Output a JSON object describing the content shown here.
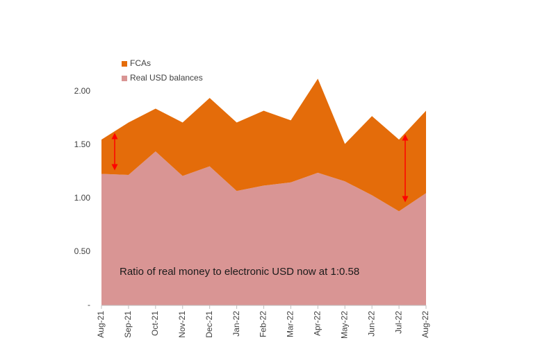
{
  "chart_data": {
    "type": "stacked_area",
    "categories": [
      "Aug-21",
      "Sep-21",
      "Oct-21",
      "Nov-21",
      "Dec-21",
      "Jan-22",
      "Feb-22",
      "Mar-22",
      "Apr-22",
      "May-22",
      "Jun-22",
      "Jul-22",
      "Aug-22"
    ],
    "series": [
      {
        "name": "Real USD balances",
        "color": "#d99594",
        "values": [
          1.23,
          1.22,
          1.44,
          1.21,
          1.3,
          1.07,
          1.12,
          1.15,
          1.24,
          1.16,
          1.03,
          0.88,
          1.05
        ]
      },
      {
        "name": "FCAs",
        "color": "#e46c0a",
        "values": [
          0.32,
          0.49,
          0.4,
          0.5,
          0.64,
          0.64,
          0.7,
          0.58,
          0.88,
          0.35,
          0.74,
          0.67,
          0.77
        ]
      }
    ],
    "ylim": [
      0,
      2.2
    ],
    "yticks": [
      {
        "value": 0,
        "label": "-"
      },
      {
        "value": 0.5,
        "label": "0.50"
      },
      {
        "value": 1,
        "label": "1.00"
      },
      {
        "value": 1.5,
        "label": "1.50"
      },
      {
        "value": 2,
        "label": "2.00"
      }
    ],
    "annotation": "Ratio of real money to electronic USD now at 1:0.58",
    "legend": "top-left"
  }
}
